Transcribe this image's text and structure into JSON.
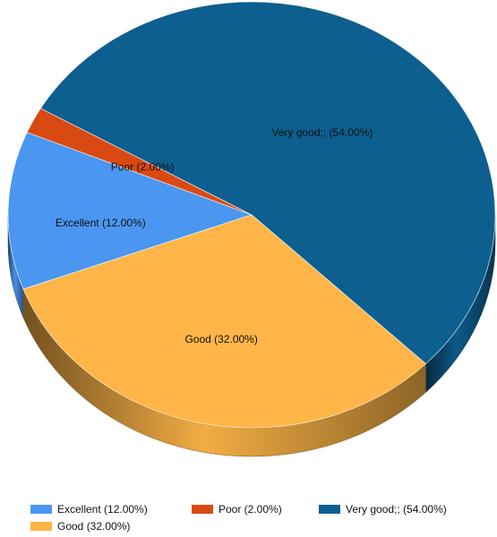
{
  "chart_data": {
    "type": "pie",
    "title": "",
    "slices": [
      {
        "name": "Excellent",
        "label": "Excellent (12.00%)",
        "value": 12.0,
        "color": "#4b96f0"
      },
      {
        "name": "Poor",
        "label": "Poor (2.00%)",
        "value": 2.0,
        "color": "#d94a12"
      },
      {
        "name": "Very good;",
        "label": "Very good;; (54.00%)",
        "value": 54.0,
        "color": "#0d5f8f"
      },
      {
        "name": "Good",
        "label": "Good (32.00%)",
        "value": 32.0,
        "color": "#ffb547"
      }
    ],
    "legend": {
      "placement": "bottom",
      "items": [
        {
          "label": "Excellent (12.00%)",
          "color": "#4b96f0"
        },
        {
          "label": "Poor (2.00%)",
          "color": "#d94a12"
        },
        {
          "label": "Very good;; (54.00%)",
          "color": "#0d5f8f"
        },
        {
          "label": "Good (32.00%)",
          "color": "#ffb547"
        }
      ]
    },
    "style": {
      "three_d": true
    }
  }
}
